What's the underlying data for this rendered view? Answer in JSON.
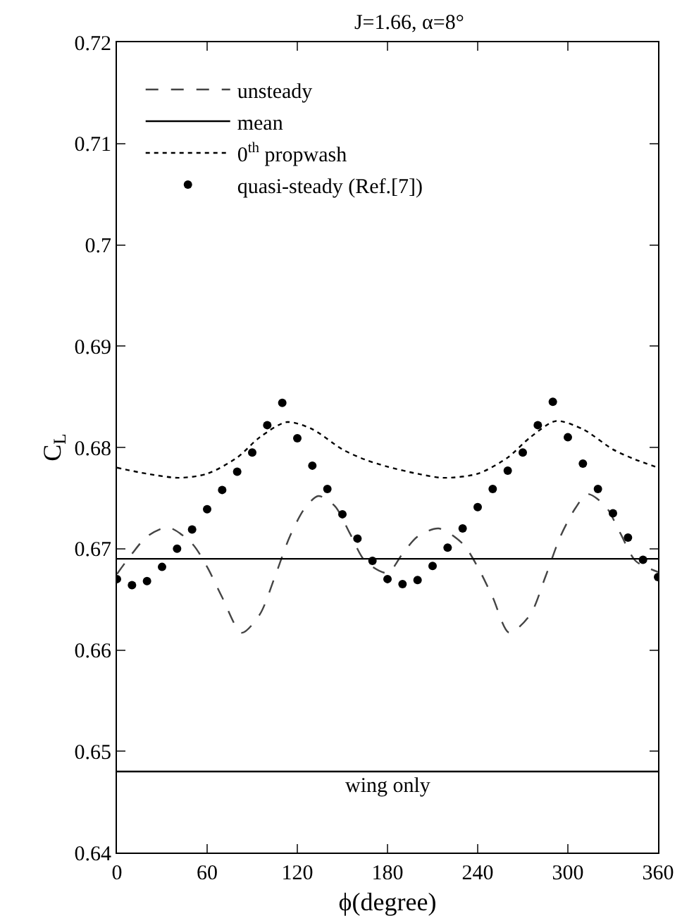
{
  "chart_data": {
    "type": "line",
    "title": "J=1.66, α=8°",
    "xlabel": "ϕ(degree)",
    "ylabel": "C$_{L}$",
    "xlim": [
      0,
      360
    ],
    "xticks": [
      0,
      60,
      120,
      180,
      240,
      300,
      360
    ],
    "ylim": [
      0.64,
      0.72
    ],
    "yticks": [
      0.64,
      0.65,
      0.66,
      0.67,
      0.68,
      0.69,
      0.7,
      0.71,
      0.72
    ],
    "grid": false,
    "legend": "top left",
    "series": [
      {
        "name": "unsteady",
        "color": "#444444",
        "line_style": "dashed",
        "marker": "none",
        "x": [
          0,
          10,
          20,
          34,
          50,
          60,
          70,
          83,
          95,
          105,
          115,
          125,
          134,
          145,
          155,
          165,
          180,
          190,
          200,
          214,
          230,
          240,
          250,
          261,
          275,
          285,
          295,
          305,
          313,
          325,
          335,
          345,
          360
        ],
        "values": [
          0.6675,
          0.6695,
          0.6712,
          0.6721,
          0.6705,
          0.6682,
          0.6652,
          0.6617,
          0.6635,
          0.6672,
          0.6712,
          0.674,
          0.6752,
          0.6742,
          0.6715,
          0.6688,
          0.6676,
          0.6695,
          0.6712,
          0.672,
          0.6705,
          0.6682,
          0.6652,
          0.6617,
          0.6635,
          0.6672,
          0.6712,
          0.674,
          0.6754,
          0.6742,
          0.6715,
          0.6688,
          0.6677
        ]
      },
      {
        "name": "mean",
        "color": "#000000",
        "line_style": "solid",
        "marker": "none",
        "x": [
          0,
          360
        ],
        "values": [
          0.669,
          0.669
        ]
      },
      {
        "name": "0$^{th}$ propwash",
        "color": "#000000",
        "line_style": "dotted",
        "marker": "none",
        "x": [
          0,
          20,
          41,
          60,
          80,
          95,
          113,
          130,
          150,
          165,
          180,
          200,
          217,
          240,
          260,
          275,
          292,
          310,
          330,
          345,
          360
        ],
        "values": [
          0.678,
          0.6774,
          0.677,
          0.6774,
          0.679,
          0.681,
          0.6825,
          0.6818,
          0.6798,
          0.6788,
          0.6781,
          0.6774,
          0.677,
          0.6774,
          0.679,
          0.681,
          0.6826,
          0.6818,
          0.6798,
          0.6788,
          0.678
        ]
      },
      {
        "name": "quasi-steady (Ref.[7])",
        "type": "scatter",
        "color": "#000000",
        "marker": "circle",
        "x": [
          0,
          10,
          20,
          30,
          40,
          50,
          60,
          70,
          80,
          90,
          100,
          110,
          120,
          130,
          140,
          150,
          160,
          170,
          180,
          190,
          200,
          210,
          220,
          230,
          240,
          250,
          260,
          270,
          280,
          290,
          300,
          310,
          320,
          330,
          340,
          350,
          360
        ],
        "values": [
          0.667,
          0.6664,
          0.6668,
          0.6682,
          0.67,
          0.6719,
          0.6739,
          0.6758,
          0.6776,
          0.6795,
          0.6822,
          0.6844,
          0.6809,
          0.6782,
          0.6759,
          0.6734,
          0.671,
          0.6688,
          0.667,
          0.6665,
          0.6669,
          0.6683,
          0.6701,
          0.672,
          0.6741,
          0.6759,
          0.6777,
          0.6795,
          0.6822,
          0.6845,
          0.681,
          0.6784,
          0.6759,
          0.6735,
          0.6711,
          0.6689,
          0.6672
        ]
      }
    ],
    "ref_lines": [
      {
        "axis": "y",
        "value": 0.648,
        "label": "wing only",
        "color": "#000000",
        "line_style": "solid"
      }
    ]
  }
}
